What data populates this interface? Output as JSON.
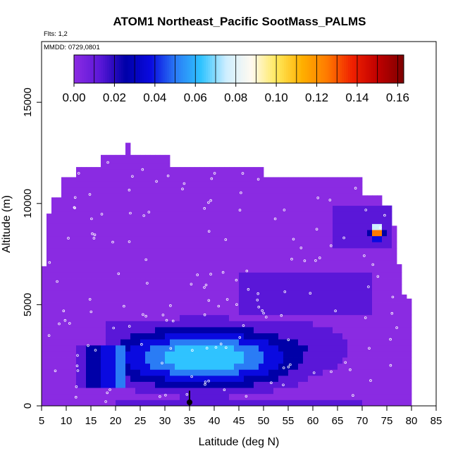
{
  "chart_data": {
    "type": "heatmap",
    "title": "ATOM1 Northeast_Pacific SootMass_PALMS",
    "flights_note": "Flts: 1,2",
    "date_note": "MMDD: 0729,0801",
    "xlabel": "Latitude (deg N)",
    "ylabel": "Altitude (m)",
    "xlim": [
      5,
      85
    ],
    "ylim": [
      0,
      18000
    ],
    "x_ticks": [
      "5",
      "10",
      "15",
      "20",
      "25",
      "30",
      "35",
      "40",
      "45",
      "50",
      "55",
      "60",
      "65",
      "70",
      "75",
      "80",
      "85"
    ],
    "y_ticks": [
      "0",
      "5000",
      "10000",
      "15000"
    ],
    "colorbar": {
      "range": [
        0,
        0.163
      ],
      "ticks": [
        "0.00",
        "0.02",
        "0.04",
        "0.06",
        "0.08",
        "0.10",
        "0.12",
        "0.14",
        "0.16"
      ],
      "colors": [
        "#8a2be2",
        "#5a17d8",
        "#0000a8",
        "#0a0ae0",
        "#2a7cf5",
        "#2fc3ff",
        "#cfeeff",
        "#fffaf0",
        "#ffe85a",
        "#ffb000",
        "#ff7a00",
        "#f02000",
        "#c00000",
        "#800000"
      ],
      "bin_values": [
        0,
        0.01,
        0.02,
        0.03,
        0.04,
        0.05,
        0.06,
        0.07,
        0.08,
        0.09,
        0.1,
        0.11,
        0.12,
        0.13,
        0.14,
        0.15,
        0.16
      ]
    },
    "max_latitude_profile": [
      {
        "lat": 21,
        "top_alt": 13000
      },
      {
        "lat": 23,
        "top_alt": 13000
      },
      {
        "lat": 17,
        "top_alt": 12400
      },
      {
        "lat": 31,
        "top_alt": 12400
      },
      {
        "lat": 12,
        "top_alt": 11800
      },
      {
        "lat": 50,
        "top_alt": 11800
      },
      {
        "lat": 8,
        "top_alt": 10400
      },
      {
        "lat": 74,
        "top_alt": 10400
      },
      {
        "lat": 78,
        "top_alt": 7000
      }
    ],
    "regions": [
      {
        "name": "background",
        "lat": [
          5,
          79
        ],
        "alt": [
          0,
          12000
        ],
        "value": 0.002
      },
      {
        "name": "boundary layer plume",
        "lat": [
          21,
          72
        ],
        "alt": [
          300,
          5000
        ],
        "value": 0.06
      },
      {
        "name": "plume core",
        "lat": [
          27,
          48
        ],
        "alt": [
          1000,
          3700
        ],
        "value": 0.065
      },
      {
        "name": "plume edge",
        "lat": [
          12,
          22
        ],
        "alt": [
          1000,
          3000
        ],
        "value": 0.02
      },
      {
        "name": "upper hotspot",
        "lat": [
          72,
          75
        ],
        "alt": [
          8200,
          9000
        ],
        "value": 0.15
      },
      {
        "name": "upper feature",
        "lat": [
          64,
          76
        ],
        "alt": [
          7800,
          10000
        ],
        "value": 0.03
      }
    ],
    "marker": {
      "lat": 35,
      "alt_bottom": 0,
      "alt_top": 750
    }
  }
}
